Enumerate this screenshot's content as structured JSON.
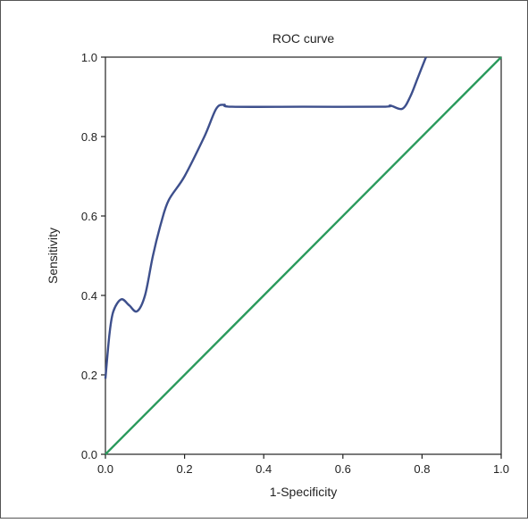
{
  "chart_data": {
    "type": "line",
    "title": "ROC curve",
    "xlabel": "1-Specificity",
    "ylabel": "Sensitivity",
    "xlim": [
      0,
      1
    ],
    "ylim": [
      0,
      1
    ],
    "x_ticks": [
      "0.0",
      "0.2",
      "0.4",
      "0.6",
      "0.8",
      "1.0"
    ],
    "y_ticks": [
      "0.0",
      "0.2",
      "0.4",
      "0.6",
      "0.8",
      "1.0"
    ],
    "grid": false,
    "legend": "none",
    "series": [
      {
        "color": "#3d4f8c",
        "points": [
          [
            0.0,
            0.19
          ],
          [
            0.01,
            0.3
          ],
          [
            0.02,
            0.36
          ],
          [
            0.04,
            0.39
          ],
          [
            0.06,
            0.375
          ],
          [
            0.08,
            0.36
          ],
          [
            0.1,
            0.4
          ],
          [
            0.12,
            0.5
          ],
          [
            0.14,
            0.58
          ],
          [
            0.16,
            0.64
          ],
          [
            0.2,
            0.7
          ],
          [
            0.25,
            0.8
          ],
          [
            0.28,
            0.87
          ],
          [
            0.3,
            0.88
          ],
          [
            0.32,
            0.875
          ],
          [
            0.5,
            0.875
          ],
          [
            0.7,
            0.875
          ],
          [
            0.72,
            0.878
          ],
          [
            0.75,
            0.87
          ],
          [
            0.77,
            0.9
          ],
          [
            0.79,
            0.95
          ],
          [
            0.81,
            1.0
          ]
        ]
      },
      {
        "color": "#2a9a5c",
        "points": [
          [
            0.0,
            0.0
          ],
          [
            1.0,
            1.0
          ]
        ]
      }
    ]
  }
}
